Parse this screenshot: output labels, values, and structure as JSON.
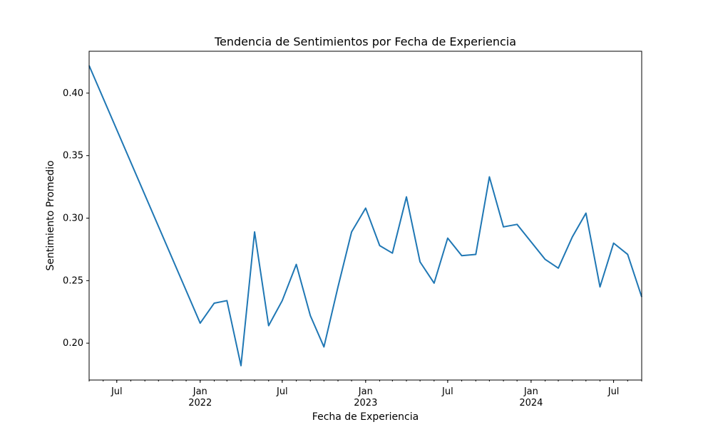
{
  "chart_data": {
    "type": "line",
    "title": "Tendencia de Sentimientos por Fecha de Experiencia",
    "xlabel": "Fecha de Experiencia",
    "ylabel": "Sentimiento Promedio",
    "xlim": [
      "2021-05-01",
      "2024-09-01"
    ],
    "ylim": [
      0.1705,
      0.4335
    ],
    "yticks": [
      0.2,
      0.25,
      0.3,
      0.35,
      0.4
    ],
    "ytick_labels": [
      "0.20",
      "0.25",
      "0.30",
      "0.35",
      "0.40"
    ],
    "xticks": [
      {
        "date": "2021-07-01",
        "label": "Jul",
        "sublabel": ""
      },
      {
        "date": "2022-01-01",
        "label": "Jan",
        "sublabel": "2022"
      },
      {
        "date": "2022-07-01",
        "label": "Jul",
        "sublabel": ""
      },
      {
        "date": "2023-01-01",
        "label": "Jan",
        "sublabel": "2023"
      },
      {
        "date": "2023-07-01",
        "label": "Jul",
        "sublabel": ""
      },
      {
        "date": "2024-01-01",
        "label": "Jan",
        "sublabel": "2024"
      },
      {
        "date": "2024-07-01",
        "label": "Jul",
        "sublabel": ""
      }
    ],
    "grid": false,
    "legend": "none",
    "series": [
      {
        "color": "#1f77b4",
        "points": [
          {
            "x": "2021-05-01",
            "y": 0.422
          },
          {
            "x": "2022-01-01",
            "y": 0.216
          },
          {
            "x": "2022-02-01",
            "y": 0.232
          },
          {
            "x": "2022-03-01",
            "y": 0.234
          },
          {
            "x": "2022-04-01",
            "y": 0.182
          },
          {
            "x": "2022-05-01",
            "y": 0.289
          },
          {
            "x": "2022-06-01",
            "y": 0.214
          },
          {
            "x": "2022-07-01",
            "y": 0.234
          },
          {
            "x": "2022-08-01",
            "y": 0.263
          },
          {
            "x": "2022-09-01",
            "y": 0.222
          },
          {
            "x": "2022-10-01",
            "y": 0.197
          },
          {
            "x": "2022-11-01",
            "y": 0.245
          },
          {
            "x": "2022-12-01",
            "y": 0.289
          },
          {
            "x": "2023-01-01",
            "y": 0.308
          },
          {
            "x": "2023-02-01",
            "y": 0.278
          },
          {
            "x": "2023-03-01",
            "y": 0.272
          },
          {
            "x": "2023-04-01",
            "y": 0.317
          },
          {
            "x": "2023-05-01",
            "y": 0.265
          },
          {
            "x": "2023-06-01",
            "y": 0.248
          },
          {
            "x": "2023-07-01",
            "y": 0.284
          },
          {
            "x": "2023-08-01",
            "y": 0.27
          },
          {
            "x": "2023-09-01",
            "y": 0.271
          },
          {
            "x": "2023-10-01",
            "y": 0.333
          },
          {
            "x": "2023-11-01",
            "y": 0.293
          },
          {
            "x": "2023-12-01",
            "y": 0.295
          },
          {
            "x": "2024-01-01",
            "y": 0.281
          },
          {
            "x": "2024-02-01",
            "y": 0.267
          },
          {
            "x": "2024-03-01",
            "y": 0.26
          },
          {
            "x": "2024-04-01",
            "y": 0.285
          },
          {
            "x": "2024-05-01",
            "y": 0.304
          },
          {
            "x": "2024-06-01",
            "y": 0.245
          },
          {
            "x": "2024-07-01",
            "y": 0.28
          },
          {
            "x": "2024-08-01",
            "y": 0.271
          },
          {
            "x": "2024-09-01",
            "y": 0.237
          }
        ]
      }
    ]
  }
}
